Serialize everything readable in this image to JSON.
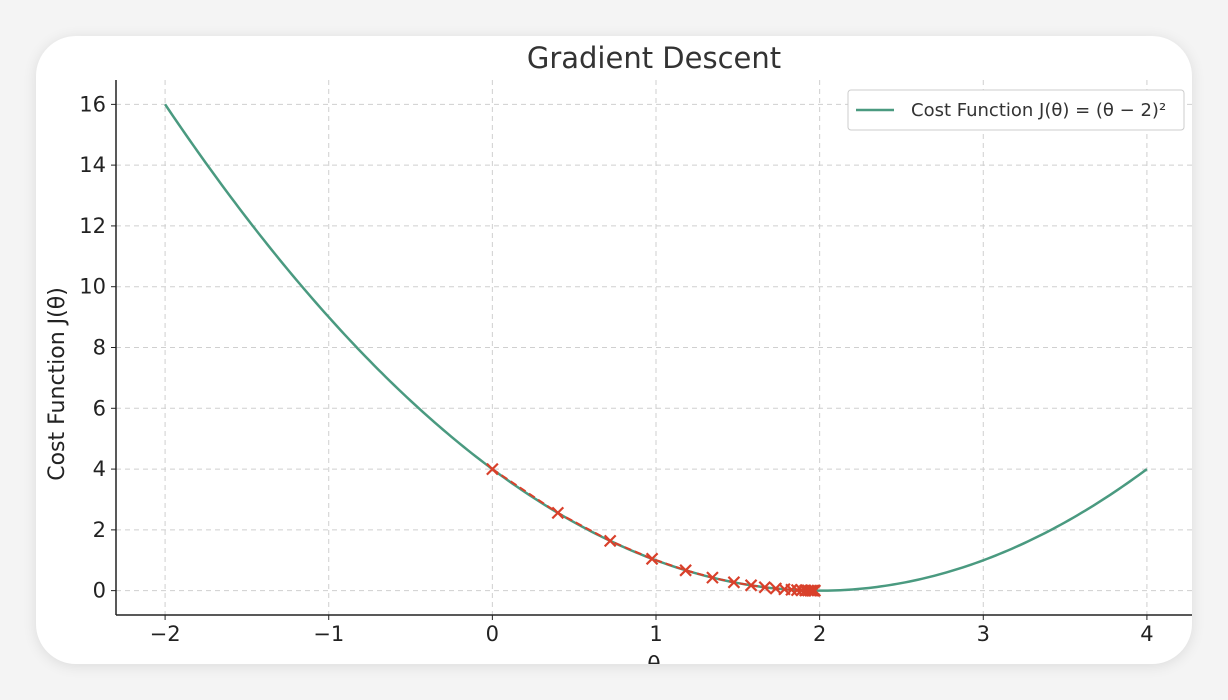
{
  "chart_data": {
    "type": "line",
    "title": "Gradient Descent",
    "xlabel": "θ",
    "ylabel": "Cost Function J(θ)",
    "xlim": [
      -2.3,
      4.3
    ],
    "ylim": [
      -0.8,
      16.8
    ],
    "xticks": [
      -2,
      -1,
      0,
      1,
      2,
      3,
      4
    ],
    "xtick_labels": [
      "−2",
      "−1",
      "0",
      "1",
      "2",
      "3",
      "4"
    ],
    "yticks": [
      0,
      2,
      4,
      6,
      8,
      10,
      12,
      14,
      16
    ],
    "ytick_labels": [
      "0",
      "2",
      "4",
      "6",
      "8",
      "10",
      "12",
      "14",
      "16"
    ],
    "grid": true,
    "legend_position": "top-right",
    "series": [
      {
        "name": "Cost Function J(θ) = (θ − 2)²",
        "kind": "line",
        "color": "#4a9a80",
        "x_range": [
          -2,
          4
        ],
        "function": "(x-2)^2"
      },
      {
        "kind": "markers",
        "marker": "x",
        "color": "#d9402b",
        "x": [
          0,
          0.4,
          0.72,
          0.976,
          1.181,
          1.345,
          1.476,
          1.581,
          1.665,
          1.732,
          1.785,
          1.828,
          1.862,
          1.89,
          1.912,
          1.93,
          1.944,
          1.955,
          1.964,
          1.971
        ],
        "y": [
          4,
          2.56,
          1.638,
          1.049,
          0.671,
          0.429,
          0.275,
          0.176,
          0.112,
          0.072,
          0.046,
          0.03,
          0.019,
          0.012,
          0.008,
          0.005,
          0.003,
          0.002,
          0.001,
          0.001
        ]
      }
    ]
  }
}
